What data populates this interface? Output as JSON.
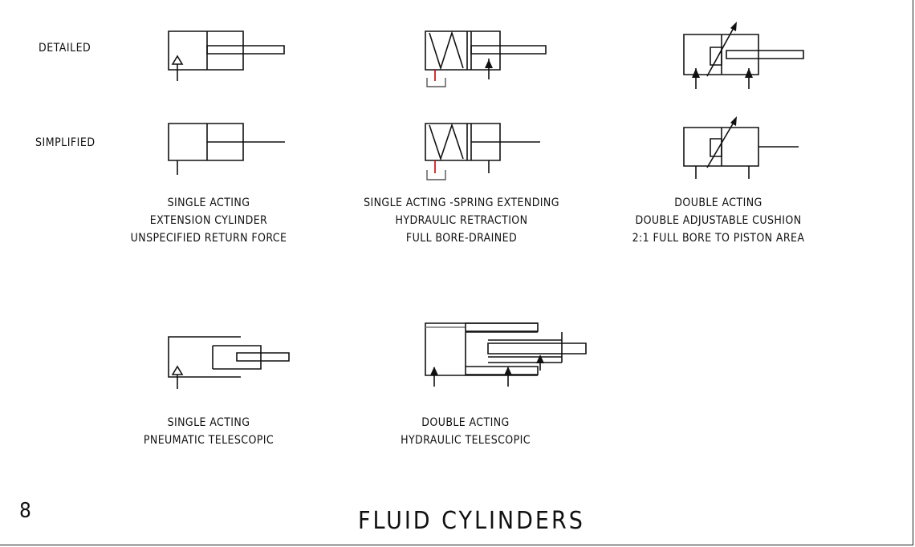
{
  "row_labels": {
    "detailed": "DETAILED",
    "simplified": "SIMPLIFIED"
  },
  "captions": {
    "single_acting_extension": [
      "SINGLE ACTING",
      "EXTENSION CYLINDER",
      "UNSPECIFIED RETURN FORCE"
    ],
    "single_acting_spring": [
      "SINGLE ACTING -SPRING EXTENDING",
      "HYDRAULIC RETRACTION",
      "FULL BORE-DRAINED"
    ],
    "double_acting_cushion": [
      "DOUBLE ACTING",
      "DOUBLE ADJUSTABLE CUSHION",
      "2:1 FULL BORE TO PISTON AREA"
    ],
    "pneumatic_telescopic": [
      "SINGLE ACTING",
      "PNEUMATIC TELESCOPIC"
    ],
    "hydraulic_telescopic": [
      "DOUBLE ACTING",
      "HYDRAULIC  TELESCOPIC"
    ]
  },
  "sheet": {
    "number": "8",
    "title": "FLUID CYLINDERS"
  },
  "colors": {
    "line": "#111111",
    "drain": "#cc0000",
    "port_bracket": "#555555"
  }
}
